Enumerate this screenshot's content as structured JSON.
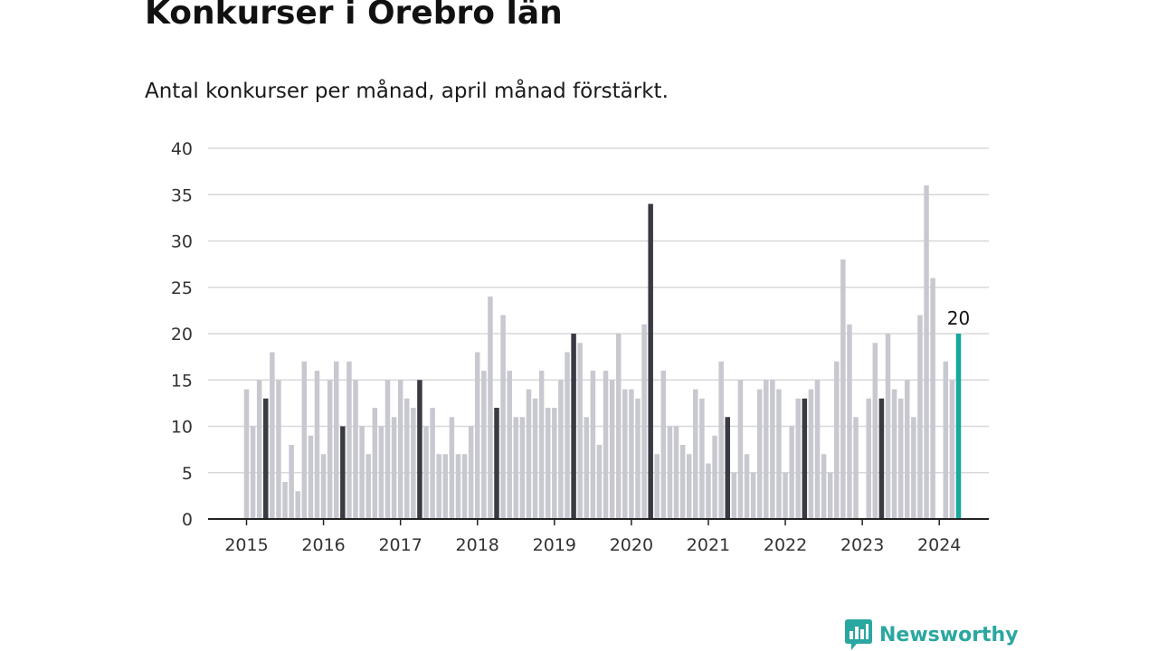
{
  "title": "Konkurser i Örebro län",
  "subtitle": "Antal konkurser per månad, april månad förstärkt.",
  "brand": {
    "name": "Newsworthy",
    "icon": "newsworthy-logo-icon",
    "color": "#2aa7a0"
  },
  "colors": {
    "bar": "#c8c8d0",
    "april": "#3a3a44",
    "latest": "#16a89c",
    "grid": "#d8d8dc",
    "axis": "#222222"
  },
  "chart_data": {
    "type": "bar",
    "title": "Konkurser i Örebro län",
    "subtitle": "Antal konkurser per månad, april månad förstärkt.",
    "xlabel": "",
    "ylabel": "",
    "ylim": [
      0,
      40
    ],
    "yticks": [
      0,
      5,
      10,
      15,
      20,
      25,
      30,
      35,
      40
    ],
    "xticks": [
      "2015",
      "2016",
      "2017",
      "2018",
      "2019",
      "2020",
      "2021",
      "2022",
      "2023",
      "2024"
    ],
    "grid": true,
    "series": [
      {
        "start": "2015-01",
        "values": [
          14,
          10,
          15,
          13,
          18,
          15,
          4,
          8,
          3,
          17,
          9,
          16,
          7,
          15,
          17,
          10,
          17,
          15,
          10,
          7,
          12,
          10,
          15,
          11,
          15,
          13,
          12,
          15,
          10,
          12,
          7,
          7,
          11,
          7,
          7,
          10,
          18,
          16,
          24,
          12,
          22,
          16,
          11,
          11,
          14,
          13,
          16,
          12,
          12,
          15,
          18,
          20,
          19,
          11,
          16,
          8,
          16,
          15,
          20,
          14,
          14,
          13,
          21,
          34,
          7,
          16,
          10,
          10,
          8,
          7,
          14,
          13,
          6,
          9,
          17,
          11,
          5,
          15,
          7,
          5,
          14,
          15,
          15,
          14,
          5,
          10,
          13,
          13,
          14,
          15,
          7,
          5,
          17,
          28,
          21,
          11,
          null,
          13,
          19,
          13,
          20,
          14,
          13,
          15,
          11,
          22,
          36,
          26,
          null,
          17,
          15,
          20
        ]
      }
    ],
    "highlight": "april",
    "annotation": {
      "label": "20",
      "month": "2024-04",
      "value": 20
    }
  }
}
